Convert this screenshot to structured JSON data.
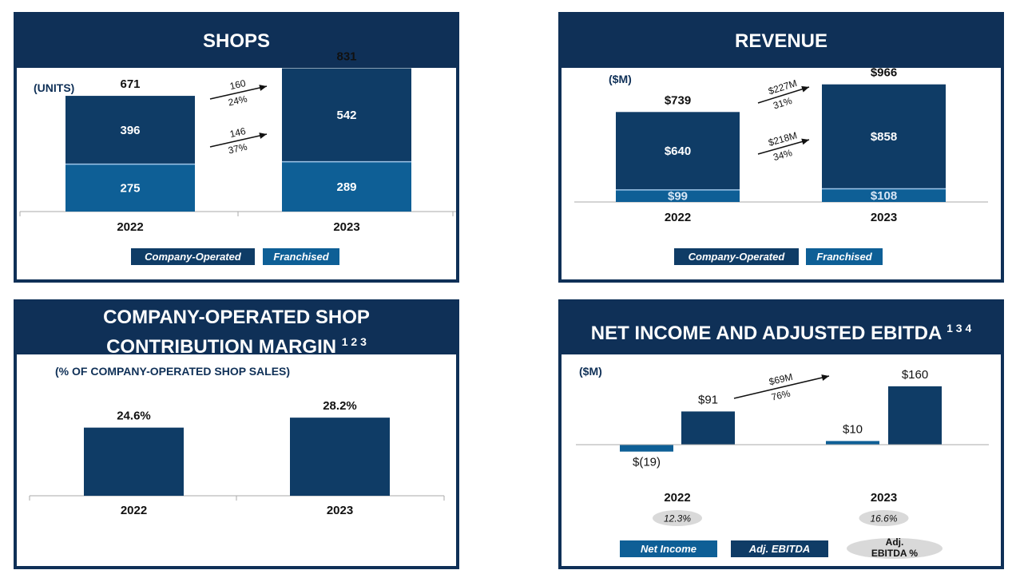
{
  "colors": {
    "dark": "#0f3c66",
    "light": "#0e5f96",
    "header": "#0f3057",
    "pill": "#d9d9d9",
    "axis": "#aaaaaa"
  },
  "shops": {
    "title": "SHOPS",
    "unit": "(UNITS)",
    "legend": {
      "company": "Company-Operated",
      "franchised": "Franchised"
    },
    "growth": [
      {
        "value": "160",
        "pct": "24%"
      },
      {
        "value": "146",
        "pct": "37%"
      }
    ]
  },
  "revenue": {
    "title": "REVENUE",
    "unit": "($M)",
    "legend": {
      "company": "Company-Operated",
      "franchised": "Franchised"
    },
    "growth": [
      {
        "value": "$227M",
        "pct": "31%"
      },
      {
        "value": "$218M",
        "pct": "34%"
      }
    ]
  },
  "margin": {
    "title_line1": "COMPANY-OPERATED SHOP",
    "title_line2": "CONTRIBUTION MARGIN",
    "title_sup": "1 2 3",
    "unit": "(% OF COMPANY-OPERATED SHOP SALES)"
  },
  "net": {
    "title": "NET INCOME AND ADJUSTED EBITDA",
    "title_sup": "1 3 4",
    "unit": "($M)",
    "growth": {
      "value": "$69M",
      "pct": "76%"
    },
    "legend": {
      "net": "Net Income",
      "ebitda": "Adj. EBITDA",
      "pct_line1": "Adj.",
      "pct_line2": "EBITDA %"
    }
  },
  "chart_data": [
    {
      "type": "bar",
      "stacked": true,
      "title": "SHOPS",
      "categories": [
        "2022",
        "2023"
      ],
      "series": [
        {
          "name": "Franchised",
          "values": [
            275,
            289
          ],
          "labels": [
            "275",
            "289"
          ]
        },
        {
          "name": "Company-Operated",
          "values": [
            396,
            542
          ],
          "labels": [
            "396",
            "542"
          ]
        }
      ],
      "totals": [
        "671",
        "831"
      ],
      "ylim": [
        0,
        900
      ]
    },
    {
      "type": "bar",
      "stacked": true,
      "title": "REVENUE",
      "categories": [
        "2022",
        "2023"
      ],
      "series": [
        {
          "name": "Franchised",
          "values": [
            99,
            108
          ],
          "labels": [
            "$99",
            "$108"
          ]
        },
        {
          "name": "Company-Operated",
          "values": [
            640,
            858
          ],
          "labels": [
            "$640",
            "$858"
          ]
        }
      ],
      "totals": [
        "$739",
        "$966"
      ],
      "ylim": [
        0,
        1050
      ]
    },
    {
      "type": "bar",
      "title": "COMPANY-OPERATED SHOP CONTRIBUTION MARGIN",
      "categories": [
        "2022",
        "2023"
      ],
      "values": [
        24.6,
        28.2
      ],
      "labels": [
        "24.6%",
        "28.2%"
      ],
      "ylim": [
        0,
        32
      ]
    },
    {
      "type": "bar",
      "title": "NET INCOME AND ADJUSTED EBITDA",
      "categories": [
        "2022",
        "2023"
      ],
      "series": [
        {
          "name": "Net Income",
          "values": [
            -19,
            10
          ],
          "labels": [
            "$(19)",
            "$10"
          ]
        },
        {
          "name": "Adj. EBITDA",
          "values": [
            91,
            160
          ],
          "labels": [
            "$91",
            "$160"
          ]
        }
      ],
      "adj_ebitda_pct": [
        "12.3%",
        "16.6%"
      ],
      "ylim": [
        -30,
        200
      ]
    }
  ]
}
